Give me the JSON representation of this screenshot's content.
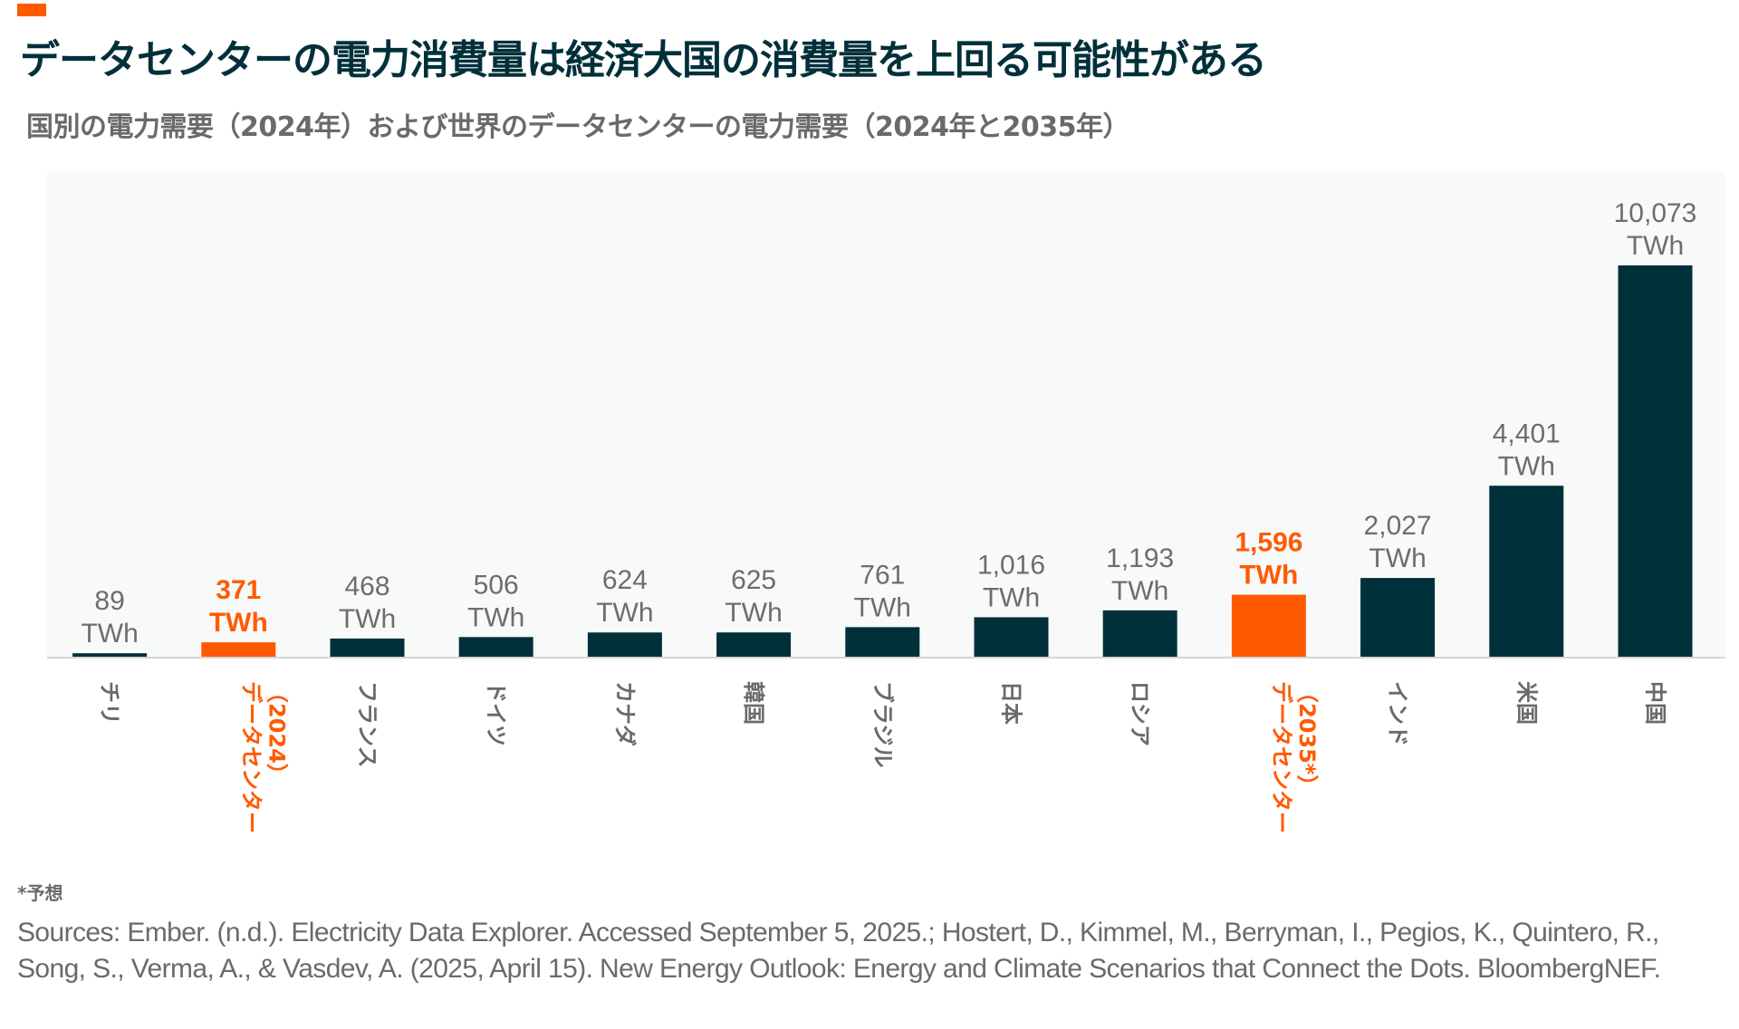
{
  "header": {
    "title": "データセンターの電力消費量は経済大国の消費量を上回る可能性がある",
    "subtitle": "国別の電力需要（2024年）および世界のデータセンターの電力需要（2024年と2035年）"
  },
  "colors": {
    "accent": "#ff5a00",
    "bar": "#00303a",
    "label": "#6a6a6a",
    "plot_background": "#f8f9f9",
    "baseline": "#d6d6d6"
  },
  "chart_data": {
    "type": "bar",
    "title": "データセンターの電力消費量は経済大国の消費量を上回る可能性がある",
    "subtitle": "国別の電力需要（2024年）および世界のデータセンターの電力需要（2024年と2035年）",
    "xlabel": "",
    "ylabel": "",
    "unit": "TWh",
    "ylim": [
      0,
      10073
    ],
    "grid": false,
    "legend": "none",
    "categories": [
      "チリ",
      "データセンター\n（2024）",
      "フランス",
      "ドイツ",
      "カナダ",
      "韓国",
      "ブラジル",
      "日本",
      "ロシア",
      "データセンター\n（2035*）",
      "インド",
      "米国",
      "中国"
    ],
    "values": [
      89,
      371,
      468,
      506,
      624,
      625,
      761,
      1016,
      1193,
      1596,
      2027,
      4401,
      10073
    ],
    "value_labels": [
      "89",
      "371",
      "468",
      "506",
      "624",
      "625",
      "761",
      "1,016",
      "1,193",
      "1,596",
      "2,027",
      "4,401",
      "10,073"
    ],
    "highlighted": [
      false,
      true,
      false,
      false,
      false,
      false,
      false,
      false,
      false,
      true,
      false,
      false,
      false
    ]
  },
  "footer": {
    "note": "*予想",
    "sources": "Sources: Ember. (n.d.). Electricity Data Explorer. Accessed September 5, 2025.; Hostert, D., Kimmel, M., Berryman, I., Pegios, K., Quintero, R., Song, S., Verma, A., & Vasdev, A. (2025, April 15). New Energy Outlook: Energy and Climate Scenarios that Connect the Dots. BloombergNEF."
  }
}
